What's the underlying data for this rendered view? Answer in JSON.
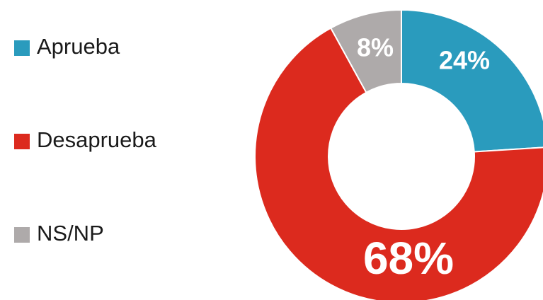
{
  "chart_data": {
    "type": "donut",
    "categories": [
      "Aprueba",
      "Desaprueba",
      "NS/NP"
    ],
    "values": [
      24,
      68,
      8
    ],
    "value_labels": [
      "24%",
      "68%",
      "8%"
    ],
    "colors": [
      "#2a9bbd",
      "#dc2a1e",
      "#aeaaaa"
    ],
    "legend": "left"
  }
}
